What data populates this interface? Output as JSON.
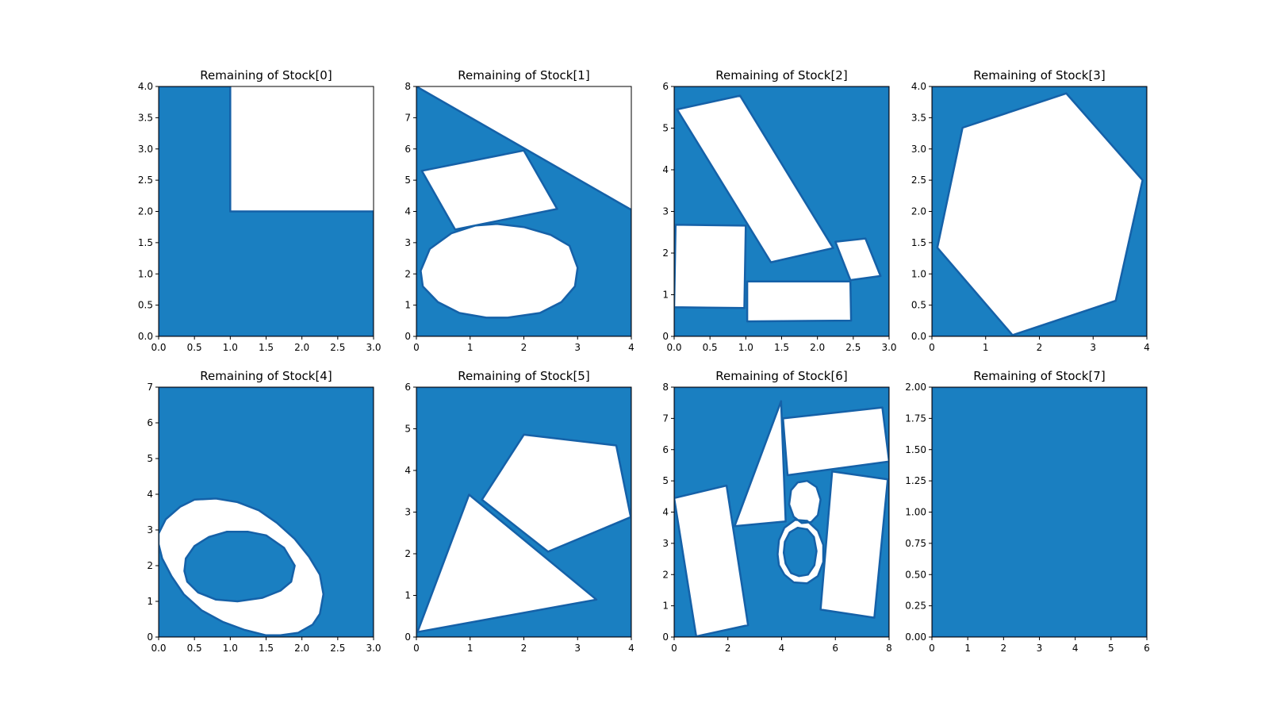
{
  "chart_data": [
    {
      "type": "area",
      "title": "Remaining of Stock[0]",
      "xlim": [
        0,
        3
      ],
      "ylim": [
        0,
        4
      ],
      "xticks": [
        "0.0",
        "0.5",
        "1.0",
        "1.5",
        "2.0",
        "2.5",
        "3.0"
      ],
      "yticks": [
        "0.0",
        "0.5",
        "1.0",
        "1.5",
        "2.0",
        "2.5",
        "3.0",
        "3.5",
        "4.0"
      ],
      "fill_color": "#1a7fc1",
      "shape": [
        [
          0,
          0
        ],
        [
          3,
          0
        ],
        [
          3,
          2
        ],
        [
          1,
          2
        ],
        [
          1,
          4
        ],
        [
          0,
          4
        ]
      ],
      "holes": []
    },
    {
      "type": "area",
      "title": "Remaining of Stock[1]",
      "xlim": [
        0,
        4
      ],
      "ylim": [
        0,
        8
      ],
      "xticks": [
        "0",
        "1",
        "2",
        "3",
        "4"
      ],
      "yticks": [
        "0",
        "1",
        "2",
        "3",
        "4",
        "5",
        "6",
        "7",
        "8"
      ],
      "fill_color": "#1a7fc1",
      "shape": [
        [
          0,
          0
        ],
        [
          4,
          0
        ],
        [
          4,
          4.05
        ],
        [
          0,
          8
        ]
      ],
      "holes": [
        [
          [
            0.1,
            5.3
          ],
          [
            2.0,
            5.95
          ],
          [
            2.62,
            4.08
          ],
          [
            0.72,
            3.42
          ]
        ],
        [
          [
            0.08,
            2.1
          ],
          [
            0.25,
            2.8
          ],
          [
            0.65,
            3.3
          ],
          [
            1.1,
            3.55
          ],
          [
            1.5,
            3.6
          ],
          [
            2.0,
            3.5
          ],
          [
            2.5,
            3.25
          ],
          [
            2.85,
            2.9
          ],
          [
            3.0,
            2.2
          ],
          [
            2.95,
            1.6
          ],
          [
            2.7,
            1.1
          ],
          [
            2.3,
            0.75
          ],
          [
            1.7,
            0.6
          ],
          [
            1.3,
            0.6
          ],
          [
            0.8,
            0.75
          ],
          [
            0.4,
            1.1
          ],
          [
            0.12,
            1.6
          ]
        ]
      ]
    },
    {
      "type": "area",
      "title": "Remaining of Stock[2]",
      "xlim": [
        0,
        3
      ],
      "ylim": [
        0,
        6
      ],
      "xticks": [
        "0.0",
        "0.5",
        "1.0",
        "1.5",
        "2.0",
        "2.5",
        "3.0"
      ],
      "yticks": [
        "0",
        "1",
        "2",
        "3",
        "4",
        "5",
        "6"
      ],
      "fill_color": "#1a7fc1",
      "shape": [
        [
          0,
          0
        ],
        [
          3,
          0
        ],
        [
          3,
          6
        ],
        [
          0,
          6
        ]
      ],
      "holes": [
        [
          [
            0.04,
            5.45
          ],
          [
            0.92,
            5.78
          ],
          [
            2.22,
            2.12
          ],
          [
            1.35,
            1.78
          ]
        ],
        [
          [
            0.02,
            2.68
          ],
          [
            1.0,
            2.66
          ],
          [
            0.98,
            0.68
          ],
          [
            0.0,
            0.7
          ]
        ],
        [
          [
            1.02,
            1.32
          ],
          [
            2.46,
            1.32
          ],
          [
            2.47,
            0.38
          ],
          [
            1.02,
            0.36
          ]
        ],
        [
          [
            2.25,
            2.27
          ],
          [
            2.67,
            2.35
          ],
          [
            2.88,
            1.45
          ],
          [
            2.46,
            1.35
          ]
        ]
      ]
    },
    {
      "type": "area",
      "title": "Remaining of Stock[3]",
      "xlim": [
        0,
        4
      ],
      "ylim": [
        0,
        4
      ],
      "xticks": [
        "0",
        "1",
        "2",
        "3",
        "4"
      ],
      "yticks": [
        "0.0",
        "0.5",
        "1.0",
        "1.5",
        "2.0",
        "2.5",
        "3.0",
        "3.5",
        "4.0"
      ],
      "fill_color": "#1a7fc1",
      "shape": [
        [
          0,
          0
        ],
        [
          4,
          0
        ],
        [
          4,
          4
        ],
        [
          0,
          4
        ]
      ],
      "holes": [
        [
          [
            0.57,
            3.34
          ],
          [
            2.5,
            3.89
          ],
          [
            3.92,
            2.5
          ],
          [
            3.42,
            0.57
          ],
          [
            1.5,
            0.02
          ],
          [
            0.1,
            1.42
          ]
        ]
      ]
    },
    {
      "type": "area",
      "title": "Remaining of Stock[4]",
      "xlim": [
        0,
        3
      ],
      "ylim": [
        0,
        7
      ],
      "xticks": [
        "0.0",
        "0.5",
        "1.0",
        "1.5",
        "2.0",
        "2.5",
        "3.0"
      ],
      "yticks": [
        "0",
        "1",
        "2",
        "3",
        "4",
        "5",
        "6",
        "7"
      ],
      "fill_color": "#1a7fc1",
      "shape": [
        [
          0,
          0
        ],
        [
          3,
          0
        ],
        [
          3,
          7
        ],
        [
          0,
          7
        ],
        [
          0,
          0
        ]
      ],
      "holes": [
        [
          [
            0.0,
            2.9
          ],
          [
            0.1,
            3.3
          ],
          [
            0.3,
            3.65
          ],
          [
            0.5,
            3.85
          ],
          [
            0.8,
            3.88
          ],
          [
            1.1,
            3.78
          ],
          [
            1.4,
            3.55
          ],
          [
            1.65,
            3.2
          ],
          [
            1.9,
            2.75
          ],
          [
            2.1,
            2.25
          ],
          [
            2.25,
            1.75
          ],
          [
            2.3,
            1.2
          ],
          [
            2.25,
            0.65
          ],
          [
            2.15,
            0.35
          ],
          [
            1.95,
            0.12
          ],
          [
            1.7,
            0.05
          ],
          [
            1.5,
            0.05
          ],
          [
            1.2,
            0.2
          ],
          [
            0.9,
            0.42
          ],
          [
            0.6,
            0.75
          ],
          [
            0.35,
            1.2
          ],
          [
            0.18,
            1.7
          ],
          [
            0.05,
            2.2
          ],
          [
            0.0,
            2.6
          ]
        ]
      ],
      "islands": [
        [
          [
            0.38,
            2.2
          ],
          [
            0.5,
            2.55
          ],
          [
            0.7,
            2.8
          ],
          [
            0.95,
            2.95
          ],
          [
            1.25,
            2.95
          ],
          [
            1.5,
            2.85
          ],
          [
            1.75,
            2.5
          ],
          [
            1.9,
            2.0
          ],
          [
            1.85,
            1.55
          ],
          [
            1.7,
            1.3
          ],
          [
            1.45,
            1.1
          ],
          [
            1.1,
            1.0
          ],
          [
            0.8,
            1.05
          ],
          [
            0.55,
            1.25
          ],
          [
            0.4,
            1.55
          ],
          [
            0.36,
            1.85
          ]
        ]
      ]
    },
    {
      "type": "area",
      "title": "Remaining of Stock[5]",
      "xlim": [
        0,
        4
      ],
      "ylim": [
        0,
        6
      ],
      "xticks": [
        "0",
        "1",
        "2",
        "3",
        "4"
      ],
      "yticks": [
        "0",
        "1",
        "2",
        "3",
        "4",
        "5",
        "6"
      ],
      "fill_color": "#1a7fc1",
      "shape": [
        [
          0,
          0
        ],
        [
          4,
          0
        ],
        [
          4,
          6
        ],
        [
          0,
          6
        ]
      ],
      "holes": [
        [
          [
            1.22,
            3.3
          ],
          [
            2.0,
            4.86
          ],
          [
            3.72,
            4.6
          ],
          [
            3.99,
            2.88
          ],
          [
            2.45,
            2.05
          ]
        ],
        [
          [
            0.02,
            0.12
          ],
          [
            0.98,
            3.42
          ],
          [
            3.35,
            0.9
          ]
        ]
      ]
    },
    {
      "type": "area",
      "title": "Remaining of Stock[6]",
      "xlim": [
        0,
        8
      ],
      "ylim": [
        0,
        8
      ],
      "xticks": [
        "0",
        "2",
        "4",
        "6",
        "8"
      ],
      "yticks": [
        "0",
        "1",
        "2",
        "3",
        "4",
        "5",
        "6",
        "7",
        "8"
      ],
      "fill_color": "#1a7fc1",
      "shape": [
        [
          0,
          0
        ],
        [
          8,
          0
        ],
        [
          8,
          8
        ],
        [
          0,
          8
        ]
      ],
      "holes": [
        [
          [
            0.0,
            4.45
          ],
          [
            1.95,
            4.85
          ],
          [
            2.75,
            0.38
          ],
          [
            0.82,
            0.02
          ]
        ],
        [
          [
            2.25,
            3.55
          ],
          [
            3.98,
            7.55
          ],
          [
            4.15,
            3.7
          ]
        ],
        [
          [
            4.05,
            7.0
          ],
          [
            7.75,
            7.35
          ],
          [
            8.0,
            5.62
          ],
          [
            4.22,
            5.18
          ]
        ],
        [
          [
            5.88,
            5.3
          ],
          [
            7.95,
            5.05
          ],
          [
            7.45,
            0.62
          ],
          [
            5.45,
            0.88
          ]
        ],
        [
          [
            4.35,
            4.7
          ],
          [
            4.6,
            4.95
          ],
          [
            4.95,
            5.0
          ],
          [
            5.3,
            4.8
          ],
          [
            5.45,
            4.4
          ],
          [
            5.35,
            3.9
          ],
          [
            5.1,
            3.68
          ],
          [
            4.75,
            3.65
          ],
          [
            4.45,
            3.85
          ],
          [
            4.28,
            4.25
          ]
        ],
        [
          [
            3.85,
            2.65
          ],
          [
            3.9,
            3.1
          ],
          [
            4.1,
            3.5
          ],
          [
            4.5,
            3.75
          ],
          [
            4.95,
            3.72
          ],
          [
            5.35,
            3.4
          ],
          [
            5.55,
            2.95
          ],
          [
            5.55,
            2.4
          ],
          [
            5.35,
            1.95
          ],
          [
            4.95,
            1.72
          ],
          [
            4.45,
            1.75
          ],
          [
            4.1,
            2.0
          ],
          [
            3.9,
            2.3
          ]
        ]
      ],
      "islands": [
        [
          [
            4.08,
            2.7
          ],
          [
            4.12,
            3.05
          ],
          [
            4.3,
            3.35
          ],
          [
            4.6,
            3.5
          ],
          [
            4.95,
            3.45
          ],
          [
            5.2,
            3.2
          ],
          [
            5.3,
            2.75
          ],
          [
            5.22,
            2.3
          ],
          [
            4.98,
            2.0
          ],
          [
            4.65,
            1.95
          ],
          [
            4.35,
            2.05
          ],
          [
            4.15,
            2.35
          ]
        ]
      ]
    },
    {
      "type": "area",
      "title": "Remaining of Stock[7]",
      "xlim": [
        0,
        6
      ],
      "ylim": [
        0,
        2
      ],
      "xticks": [
        "0",
        "1",
        "2",
        "3",
        "4",
        "5",
        "6"
      ],
      "yticks": [
        "0.00",
        "0.25",
        "0.50",
        "0.75",
        "1.00",
        "1.25",
        "1.50",
        "1.75",
        "2.00"
      ],
      "fill_color": "#1a7fc1",
      "shape": [
        [
          0,
          0
        ],
        [
          6,
          0
        ],
        [
          6,
          2
        ],
        [
          0,
          2
        ]
      ],
      "holes": []
    }
  ]
}
